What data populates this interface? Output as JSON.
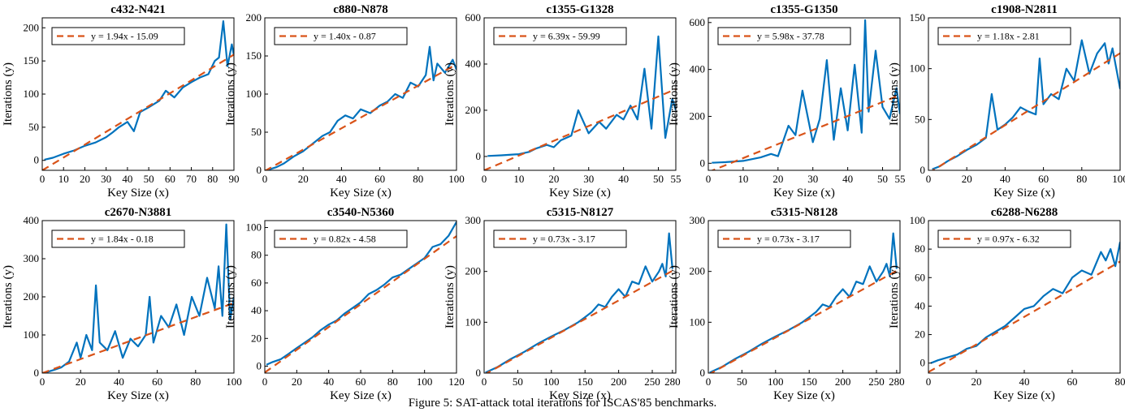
{
  "caption": "Figure 5: SAT-attack total iterations for ISCAS'85 benchmarks.",
  "colors": {
    "data_line": "#0072BD",
    "fit_line": "#D95319",
    "axis": "#000000"
  },
  "chart_data": [
    {
      "type": "line",
      "title": "c432-N421",
      "xlabel": "Key Size (x)",
      "ylabel": "Iterations (y)",
      "xlim": [
        0,
        90
      ],
      "ylim": [
        -15,
        215
      ],
      "xticks": [
        0,
        10,
        20,
        30,
        40,
        50,
        60,
        70,
        80,
        90
      ],
      "yticks": [
        0,
        50,
        100,
        150,
        200
      ],
      "legend": "y = 1.94x - 15.09",
      "legend_loc": "top-left",
      "fit": {
        "slope": 1.94,
        "intercept": -15.09
      },
      "series": [
        {
          "x": [
            1,
            5,
            10,
            15,
            20,
            25,
            30,
            33,
            36,
            40,
            43,
            46,
            50,
            55,
            58,
            62,
            66,
            70,
            74,
            78,
            81,
            83,
            85,
            87,
            89,
            90
          ],
          "values": [
            1,
            4,
            10,
            15,
            22,
            27,
            35,
            42,
            50,
            58,
            44,
            73,
            80,
            90,
            105,
            95,
            110,
            118,
            125,
            130,
            150,
            155,
            210,
            142,
            175,
            158
          ]
        }
      ]
    },
    {
      "type": "line",
      "title": "c880-N878",
      "xlabel": "Key Size (x)",
      "ylabel": "Iterations (y)",
      "xlim": [
        0,
        100
      ],
      "ylim": [
        0,
        200
      ],
      "xticks": [
        0,
        20,
        40,
        60,
        80,
        100
      ],
      "yticks": [
        0,
        50,
        100,
        150,
        200
      ],
      "legend": "y = 1.40x - 0.87",
      "legend_loc": "top-left",
      "fit": {
        "slope": 1.4,
        "intercept": -0.87
      },
      "series": [
        {
          "x": [
            2,
            6,
            10,
            15,
            20,
            25,
            30,
            34,
            38,
            42,
            46,
            50,
            55,
            60,
            64,
            68,
            72,
            76,
            80,
            84,
            86,
            88,
            90,
            94,
            98,
            100
          ],
          "values": [
            1,
            4,
            9,
            18,
            25,
            35,
            45,
            50,
            65,
            72,
            68,
            80,
            75,
            85,
            90,
            100,
            95,
            115,
            110,
            125,
            162,
            118,
            140,
            128,
            145,
            132
          ]
        }
      ]
    },
    {
      "type": "line",
      "title": "c1355-G1328",
      "xlabel": "Key Size (x)",
      "ylabel": "Iterations (y)",
      "xlim": [
        0,
        55
      ],
      "ylim": [
        -60,
        600
      ],
      "xticks": [
        0,
        10,
        20,
        30,
        40,
        50,
        55
      ],
      "yticks": [
        0,
        200,
        400,
        600
      ],
      "legend": "y = 6.39x - 59.99",
      "legend_loc": "top-left",
      "fit": {
        "slope": 6.39,
        "intercept": -59.99
      },
      "series": [
        {
          "x": [
            1,
            5,
            10,
            13,
            15,
            18,
            20,
            22,
            25,
            27,
            30,
            33,
            35,
            38,
            40,
            42,
            44,
            46,
            48,
            50,
            52,
            54,
            55
          ],
          "values": [
            2,
            5,
            10,
            20,
            35,
            50,
            40,
            70,
            90,
            200,
            100,
            150,
            120,
            180,
            160,
            220,
            160,
            380,
            120,
            520,
            80,
            250,
            200
          ]
        }
      ]
    },
    {
      "type": "line",
      "title": "c1355-G1350",
      "xlabel": "Key Size (x)",
      "ylabel": "Iterations (y)",
      "xlim": [
        0,
        55
      ],
      "ylim": [
        -30,
        620
      ],
      "xticks": [
        0,
        10,
        20,
        30,
        40,
        50,
        55
      ],
      "yticks": [
        0,
        200,
        400,
        600
      ],
      "legend": "y = 5.98x - 37.78",
      "legend_loc": "top-left",
      "fit": {
        "slope": 5.98,
        "intercept": -37.78
      },
      "series": [
        {
          "x": [
            1,
            5,
            10,
            15,
            18,
            20,
            23,
            25,
            27,
            30,
            32,
            34,
            36,
            38,
            40,
            42,
            44,
            45,
            46,
            48,
            50,
            52,
            54,
            55
          ],
          "values": [
            2,
            5,
            10,
            25,
            40,
            30,
            160,
            120,
            310,
            90,
            190,
            440,
            100,
            320,
            140,
            420,
            130,
            610,
            220,
            480,
            240,
            190,
            320,
            210
          ]
        }
      ]
    },
    {
      "type": "line",
      "title": "c1908-N2811",
      "xlabel": "Key Size (x)",
      "ylabel": "Iterations (y)",
      "xlim": [
        0,
        100
      ],
      "ylim": [
        0,
        150
      ],
      "xticks": [
        0,
        20,
        40,
        60,
        80,
        100
      ],
      "yticks": [
        0,
        50,
        100,
        150
      ],
      "legend": "y = 1.18x - 2.81",
      "legend_loc": "top-left",
      "fit": {
        "slope": 1.18,
        "intercept": -2.81
      },
      "series": [
        {
          "x": [
            2,
            6,
            10,
            15,
            20,
            25,
            30,
            33,
            36,
            40,
            44,
            48,
            52,
            56,
            58,
            60,
            64,
            68,
            72,
            76,
            80,
            84,
            88,
            92,
            94,
            96,
            98,
            100
          ],
          "values": [
            1,
            4,
            9,
            14,
            20,
            25,
            32,
            75,
            40,
            45,
            52,
            62,
            58,
            55,
            110,
            65,
            75,
            70,
            100,
            88,
            128,
            95,
            115,
            125,
            105,
            120,
            100,
            80
          ]
        }
      ]
    },
    {
      "type": "line",
      "title": "c2670-N3881",
      "xlabel": "Key Size (x)",
      "ylabel": "Iterations (y)",
      "xlim": [
        0,
        100
      ],
      "ylim": [
        0,
        400
      ],
      "xticks": [
        0,
        20,
        40,
        60,
        80,
        100
      ],
      "yticks": [
        0,
        100,
        200,
        300,
        400
      ],
      "legend": "y = 1.84x - 0.18",
      "legend_loc": "top-left",
      "fit": {
        "slope": 1.84,
        "intercept": -0.18
      },
      "series": [
        {
          "x": [
            2,
            6,
            10,
            14,
            18,
            20,
            23,
            26,
            28,
            30,
            34,
            38,
            42,
            46,
            50,
            54,
            56,
            58,
            62,
            66,
            70,
            74,
            78,
            82,
            86,
            90,
            92,
            94,
            96,
            98,
            100
          ],
          "values": [
            2,
            8,
            15,
            30,
            80,
            40,
            100,
            60,
            230,
            80,
            60,
            110,
            40,
            90,
            70,
            100,
            200,
            80,
            150,
            120,
            180,
            100,
            200,
            150,
            250,
            170,
            280,
            150,
            390,
            140,
            200
          ]
        }
      ]
    },
    {
      "type": "line",
      "title": "c3540-N5360",
      "xlabel": "Key Size (x)",
      "ylabel": "Iterations (y)",
      "xlim": [
        0,
        120
      ],
      "ylim": [
        -5,
        105
      ],
      "xticks": [
        0,
        20,
        40,
        60,
        80,
        100,
        120
      ],
      "yticks": [
        0,
        20,
        40,
        60,
        80,
        100
      ],
      "legend": "y = 0.82x - 4.58",
      "legend_loc": "top-left",
      "fit": {
        "slope": 0.82,
        "intercept": -4.58
      },
      "series": [
        {
          "x": [
            1,
            5,
            10,
            15,
            20,
            25,
            30,
            35,
            40,
            45,
            50,
            55,
            60,
            65,
            70,
            75,
            80,
            85,
            90,
            95,
            100,
            105,
            110,
            115,
            120
          ],
          "values": [
            1,
            3,
            5,
            9,
            13,
            17,
            21,
            26,
            30,
            33,
            38,
            42,
            46,
            52,
            55,
            59,
            64,
            66,
            70,
            74,
            78,
            86,
            88,
            94,
            104
          ]
        }
      ]
    },
    {
      "type": "line",
      "title": "c5315-N8127",
      "xlabel": "Key Size (x)",
      "ylabel": "Iterations (y)",
      "xlim": [
        0,
        285
      ],
      "ylim": [
        0,
        300
      ],
      "xticks": [
        0,
        50,
        100,
        150,
        200,
        250,
        280
      ],
      "yticks": [
        0,
        100,
        200,
        300
      ],
      "legend": "y = 0.73x - 3.17",
      "legend_loc": "top-left",
      "fit": {
        "slope": 0.73,
        "intercept": -3.17
      },
      "series": [
        {
          "x": [
            2,
            20,
            40,
            60,
            80,
            100,
            120,
            140,
            150,
            160,
            170,
            180,
            190,
            200,
            210,
            220,
            230,
            240,
            250,
            260,
            265,
            270,
            275,
            280
          ],
          "values": [
            1,
            12,
            28,
            42,
            58,
            72,
            85,
            100,
            110,
            120,
            135,
            130,
            150,
            165,
            150,
            180,
            175,
            210,
            180,
            200,
            215,
            190,
            275,
            205
          ]
        }
      ]
    },
    {
      "type": "line",
      "title": "c5315-N8128",
      "xlabel": "Key Size (x)",
      "ylabel": "Iterations (y)",
      "xlim": [
        0,
        285
      ],
      "ylim": [
        0,
        300
      ],
      "xticks": [
        0,
        50,
        100,
        150,
        200,
        250,
        280
      ],
      "yticks": [
        0,
        100,
        200,
        300
      ],
      "legend": "y = 0.73x - 3.17",
      "legend_loc": "top-left",
      "fit": {
        "slope": 0.73,
        "intercept": -3.17
      },
      "series": [
        {
          "x": [
            2,
            20,
            40,
            60,
            80,
            100,
            120,
            140,
            150,
            160,
            170,
            180,
            190,
            200,
            210,
            220,
            230,
            240,
            250,
            260,
            265,
            270,
            275,
            280
          ],
          "values": [
            1,
            12,
            28,
            42,
            58,
            72,
            85,
            100,
            110,
            120,
            135,
            130,
            150,
            165,
            150,
            180,
            175,
            210,
            180,
            200,
            215,
            190,
            275,
            205
          ]
        }
      ]
    },
    {
      "type": "line",
      "title": "c6288-N6288",
      "xlabel": "Key Size (x)",
      "ylabel": "Iterations (y)",
      "xlim": [
        0,
        80
      ],
      "ylim": [
        -7,
        100
      ],
      "xticks": [
        0,
        20,
        40,
        60,
        80
      ],
      "yticks": [
        0,
        20,
        40,
        60,
        80,
        100
      ],
      "legend": "y = 0.97x - 6.32",
      "legend_loc": "top-left",
      "fit": {
        "slope": 0.97,
        "intercept": -6.32
      },
      "series": [
        {
          "x": [
            1,
            4,
            8,
            12,
            16,
            20,
            24,
            28,
            32,
            36,
            40,
            44,
            48,
            52,
            56,
            60,
            64,
            68,
            72,
            74,
            76,
            78,
            80
          ],
          "values": [
            0,
            2,
            4,
            6,
            10,
            12,
            18,
            22,
            26,
            32,
            38,
            40,
            47,
            52,
            49,
            60,
            65,
            62,
            78,
            72,
            80,
            68,
            85
          ]
        }
      ]
    }
  ]
}
